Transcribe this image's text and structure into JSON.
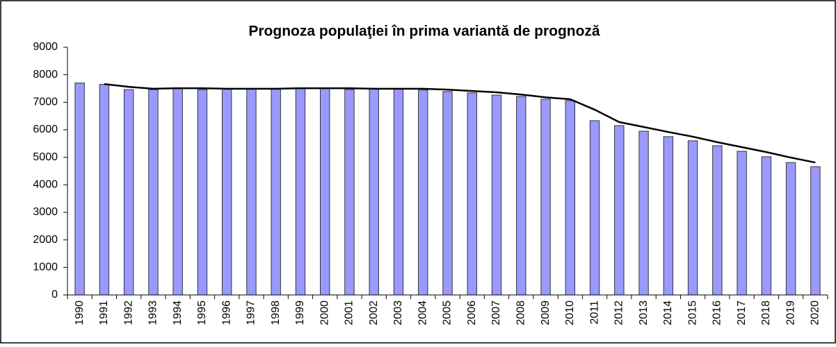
{
  "chart_data": {
    "type": "bar",
    "title": "Prognoza populaţiei în prima variantă de prognoză",
    "categories": [
      "1990",
      "1991",
      "1992",
      "1993",
      "1994",
      "1995",
      "1996",
      "1997",
      "1998",
      "1999",
      "2000",
      "2001",
      "2002",
      "2003",
      "2004",
      "2005",
      "2006",
      "2007",
      "2008",
      "2009",
      "2010",
      "2011",
      "2012",
      "2013",
      "2014",
      "2015",
      "2016",
      "2017",
      "2018",
      "2019",
      "2020"
    ],
    "series": [
      {
        "type": "bar",
        "color": "#9999ff",
        "values": [
          7700,
          7650,
          7460,
          7460,
          7510,
          7460,
          7490,
          7490,
          7490,
          7510,
          7510,
          7460,
          7490,
          7490,
          7440,
          7390,
          7340,
          7260,
          7210,
          7110,
          7060,
          6330,
          6150,
          5950,
          5750,
          5600,
          5420,
          5220,
          5020,
          4810,
          4660
        ]
      },
      {
        "type": "line",
        "color": "#000000",
        "values": [
          null,
          7660,
          7560,
          7490,
          7510,
          7510,
          7490,
          7490,
          7490,
          7510,
          7510,
          7510,
          7490,
          7490,
          7490,
          7460,
          7410,
          7360,
          7280,
          7180,
          7110,
          6730,
          6280,
          6100,
          5920,
          5750,
          5550,
          5370,
          5190,
          4990,
          4810
        ]
      }
    ],
    "ylim": [
      0,
      9000
    ],
    "yticks": [
      0,
      1000,
      2000,
      3000,
      4000,
      5000,
      6000,
      7000,
      8000,
      9000
    ]
  }
}
